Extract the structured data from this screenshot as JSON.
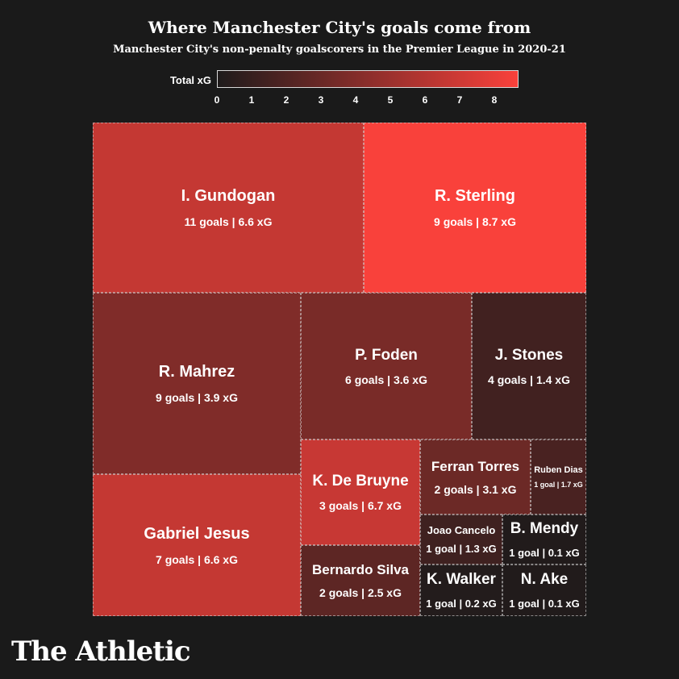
{
  "header": {
    "title": "Where Manchester City's goals come from",
    "subtitle": "Manchester City's non-penalty goalscorers in the Premier League in 2020-21"
  },
  "legend": {
    "label": "Total xG",
    "ticks": [
      "0",
      "1",
      "2",
      "3",
      "4",
      "5",
      "6",
      "7",
      "8"
    ],
    "color_low": "#1e1b1b",
    "color_high": "#f9413b"
  },
  "brand": {
    "name": "The Athletic"
  },
  "chart_data": {
    "type": "treemap",
    "title": "Where Manchester City's goals come from",
    "subtitle": "Manchester City's non-penalty goalscorers in the Premier League in 2020-21",
    "size_metric": "goals",
    "color_metric": "Total xG",
    "color_range": [
      0,
      8.7
    ],
    "items": [
      {
        "name": "I. Gundogan",
        "goals": 11,
        "xg": 6.6,
        "label": "11 goals | 6.6 xG"
      },
      {
        "name": "R. Sterling",
        "goals": 9,
        "xg": 8.7,
        "label": "9 goals | 8.7 xG"
      },
      {
        "name": "R. Mahrez",
        "goals": 9,
        "xg": 3.9,
        "label": "9 goals | 3.9 xG"
      },
      {
        "name": "P. Foden",
        "goals": 6,
        "xg": 3.6,
        "label": "6 goals | 3.6 xG"
      },
      {
        "name": "J. Stones",
        "goals": 4,
        "xg": 1.4,
        "label": "4 goals | 1.4 xG"
      },
      {
        "name": "Gabriel Jesus",
        "goals": 7,
        "xg": 6.6,
        "label": "7 goals | 6.6 xG"
      },
      {
        "name": "K. De Bruyne",
        "goals": 3,
        "xg": 6.7,
        "label": "3 goals | 6.7 xG"
      },
      {
        "name": "Ferran Torres",
        "goals": 2,
        "xg": 3.1,
        "label": "2 goals | 3.1 xG"
      },
      {
        "name": "Ruben Dias",
        "goals": 1,
        "xg": 1.7,
        "label": "1 goal | 1.7 xG"
      },
      {
        "name": "Bernardo Silva",
        "goals": 2,
        "xg": 2.5,
        "label": "2 goals | 2.5 xG"
      },
      {
        "name": "Joao Cancelo",
        "goals": 1,
        "xg": 1.3,
        "label": "1 goal | 1.3 xG"
      },
      {
        "name": "B. Mendy",
        "goals": 1,
        "xg": 0.1,
        "label": "1 goal | 0.1 xG"
      },
      {
        "name": "K. Walker",
        "goals": 1,
        "xg": 0.2,
        "label": "1 goal | 0.2 xG"
      },
      {
        "name": "N. Ake",
        "goals": 1,
        "xg": 0.1,
        "label": "1 goal | 0.1 xG"
      }
    ]
  }
}
